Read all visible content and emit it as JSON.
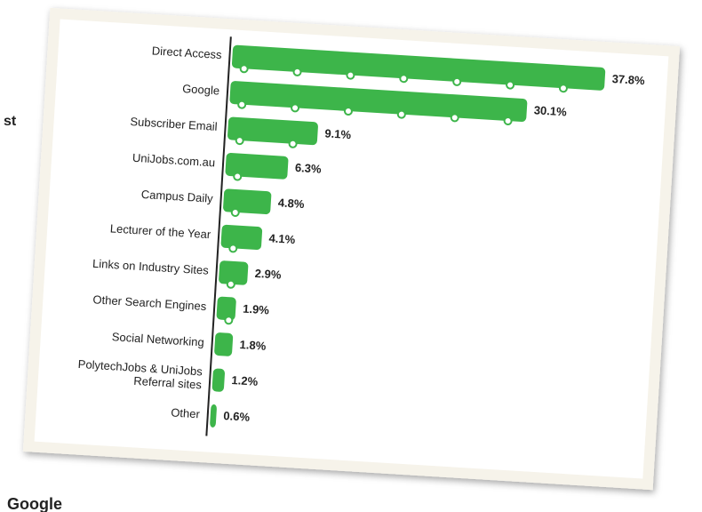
{
  "chart_data": {
    "type": "bar",
    "orientation": "horizontal",
    "categories": [
      "Direct Access",
      "Google",
      "Subscriber Email",
      "UniJobs.com.au",
      "Campus Daily",
      "Lecturer of the Year",
      "Links on Industry Sites",
      "Other Search Engines",
      "Social Networking",
      "PolytechJobs & UniJobs\nReferral sites",
      "Other"
    ],
    "values": [
      37.8,
      30.1,
      9.1,
      6.3,
      4.8,
      4.1,
      2.9,
      1.9,
      1.8,
      1.2,
      0.6
    ],
    "value_labels": [
      "37.8%",
      "30.1%",
      "9.1%",
      "6.3%",
      "4.8%",
      "4.1%",
      "2.9%",
      "1.9%",
      "1.8%",
      "1.2%",
      "0.6%"
    ],
    "color": "#3db54a"
  },
  "background": {
    "fragments": [
      "st",
      "t",
      "Google"
    ]
  }
}
